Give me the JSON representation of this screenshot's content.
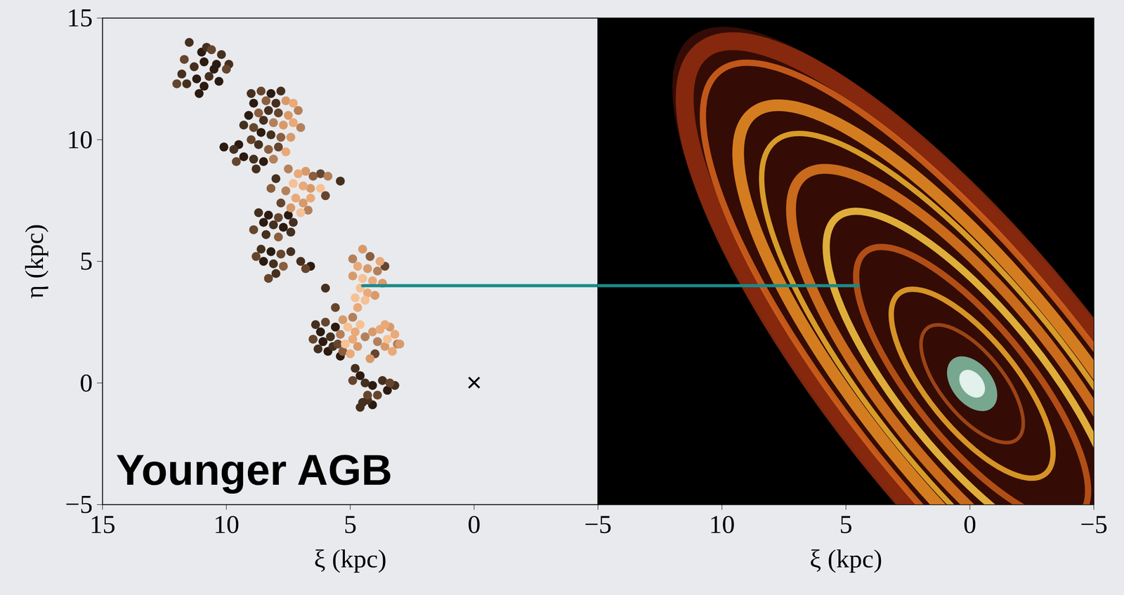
{
  "chart_data": [
    {
      "type": "scatter",
      "xlabel": "ξ (kpc)",
      "ylabel": "η (kpc)",
      "xlim": [
        15,
        -5
      ],
      "xticks": [
        15,
        10,
        5,
        0,
        -5
      ],
      "ylim": [
        -5,
        15
      ],
      "yticks": [
        -5,
        0,
        5,
        10,
        15
      ],
      "marker": "circle",
      "annotations": [
        {
          "text": "Younger AGB"
        },
        {
          "text": "×",
          "x": 0,
          "y": 0
        }
      ],
      "connector": {
        "x": 4.5,
        "y": 4,
        "color": "#1a8a8a"
      },
      "series": [
        {
          "color": "#2b1b10",
          "x": [
            11.0,
            10.9,
            10.4,
            11.2,
            10.3,
            10.9,
            11.1,
            10.5,
            8.2,
            8.9,
            9.1,
            8.6,
            9.5,
            9.3,
            8.5,
            10.1,
            8.3,
            7.5,
            8.5,
            7.7,
            8.2,
            8.5,
            6.6,
            5.6,
            6.2,
            6.1,
            5.9,
            5.4,
            4.6,
            4.1,
            3.5,
            4.1
          ],
          "values": [
            13.6,
            13.2,
            13.1,
            12.5,
            12.4,
            12.2,
            11.9,
            12.9,
            11.9,
            11.5,
            11.0,
            10.3,
            9.8,
            9.3,
            9.1,
            9.7,
            6.9,
            6.9,
            6.6,
            6.4,
            5.4,
            5.0,
            4.8,
            2.3,
            2.1,
            1.7,
            1.3,
            1.1,
            0.3,
            -0.1,
            -0.3,
            -0.9
          ]
        },
        {
          "color": "#45301f",
          "x": [
            11.5,
            10.2,
            11.3,
            11.8,
            10.7,
            11.6,
            9.9,
            10.8,
            9.0,
            7.8,
            8.0,
            8.3,
            8.5,
            9.3,
            8.2,
            8.7,
            8.9,
            9.7,
            8.8,
            5.4,
            8.0,
            8.7,
            8.1,
            7.3,
            8.4,
            7.4,
            8.6,
            7.4,
            8.1,
            8.0,
            7.0,
            6.0,
            6.4,
            5.8,
            5.7,
            6.3,
            4.8,
            4.4,
            3.7,
            3.2,
            4.5,
            4.6,
            4.3
          ],
          "values": [
            14.0,
            13.5,
            13.0,
            12.7,
            12.6,
            12.3,
            13.1,
            13.8,
            11.9,
            12.0,
            11.5,
            11.2,
            10.8,
            10.6,
            10.2,
            9.8,
            9.2,
            9.6,
            8.8,
            8.3,
            8.4,
            7.0,
            6.5,
            6.6,
            6.1,
            6.2,
            5.5,
            5.4,
            4.9,
            4.5,
            5.0,
            3.9,
            2.4,
            1.9,
            1.5,
            1.4,
            0.6,
            0.0,
            0.1,
            -0.1,
            -0.8,
            -1.0,
            -0.7
          ]
        },
        {
          "color": "#66452e",
          "x": [
            10.6,
            10.0,
            12.0,
            11.7,
            8.6,
            7.9,
            8.9,
            9.0,
            7.9,
            9.6,
            6.2,
            7.8,
            6.0,
            7.9,
            8.9,
            7.8,
            8.3,
            6.8,
            8.8,
            3.6,
            4.0,
            5.6,
            6.0,
            6.5,
            5.5,
            4.9,
            3.4,
            4.3,
            3.9
          ],
          "values": [
            13.7,
            12.9,
            12.3,
            13.3,
            12.0,
            11.1,
            10.5,
            10.0,
            9.7,
            9.1,
            8.6,
            7.4,
            7.7,
            6.8,
            6.3,
            5.3,
            4.3,
            4.7,
            5.2,
            4.8,
            1.2,
            3.1,
            2.5,
            1.8,
            1.6,
            0.1,
            0.0,
            -0.5,
            -0.5
          ]
        },
        {
          "color": "#8a5e3f",
          "x": [
            8.4,
            8.7,
            7.8,
            8.3,
            6.5,
            8.2,
            7.9,
            7.7,
            4.2,
            5.3
          ],
          "values": [
            11.6,
            11.1,
            10.1,
            9.6,
            8.5,
            8.0,
            6.0,
            4.8,
            5.2,
            1.3
          ]
        },
        {
          "color": "#b4805a",
          "x": [
            7.1,
            8.1,
            7.0,
            8.1,
            7.5,
            5.9,
            7.6,
            6.7,
            4.9,
            3.9,
            4.9,
            5.4,
            4.4,
            3.1,
            3.9
          ],
          "values": [
            11.2,
            10.7,
            10.5,
            9.2,
            8.8,
            8.5,
            7.9,
            7.1,
            5.1,
            4.6,
            2.7,
            2.0,
            1.9,
            1.6,
            1.7
          ]
        },
        {
          "color": "#d89a6a",
          "x": [
            7.6,
            7.5,
            7.7,
            7.4,
            6.8,
            6.6,
            6.9,
            7.4,
            4.5,
            4.3,
            4.9,
            3.7,
            4.0,
            5.3,
            4.7,
            4.1,
            3.4,
            3.6,
            3.0,
            4.2
          ],
          "values": [
            11.6,
            11.0,
            10.6,
            10.1,
            8.7,
            8.0,
            7.4,
            7.2,
            5.5,
            4.7,
            4.4,
            4.1,
            3.6,
            2.6,
            1.5,
            2.1,
            2.3,
            1.5,
            1.6,
            1.0
          ]
        },
        {
          "color": "#eaa978",
          "x": [
            7.3,
            7.3,
            7.6,
            7.1,
            6.9,
            7.2,
            6.6,
            3.8,
            4.7,
            4.1,
            4.3,
            4.7,
            4.8,
            4.9,
            5.0,
            3.8,
            3.2,
            3.3,
            3.6
          ],
          "values": [
            11.5,
            10.7,
            9.5,
            8.6,
            8.1,
            7.6,
            7.6,
            5.0,
            4.8,
            4.2,
            3.7,
            3.1,
            2.1,
            1.8,
            1.2,
            2.2,
            2.0,
            1.3,
            2.4
          ]
        },
        {
          "color": "#f6c195",
          "x": [
            7.3,
            6.2,
            7.0,
            4.5,
            4.6,
            4.8,
            4.4,
            4.6,
            5.1,
            5.2,
            3.5
          ],
          "values": [
            8.2,
            8.0,
            7.0,
            4.3,
            3.9,
            3.5,
            3.4,
            2.4,
            2.3,
            1.6,
            1.8
          ]
        }
      ]
    },
    {
      "type": "image",
      "xlabel": "ξ (kpc)",
      "xlim": [
        15,
        -5
      ],
      "xticks": [
        10,
        5,
        0,
        -5
      ],
      "ylim": [
        -5,
        15
      ],
      "tick_labels": "x",
      "connector": {
        "x": 4.5,
        "y": 4,
        "color": "#1a8a8a"
      }
    }
  ]
}
